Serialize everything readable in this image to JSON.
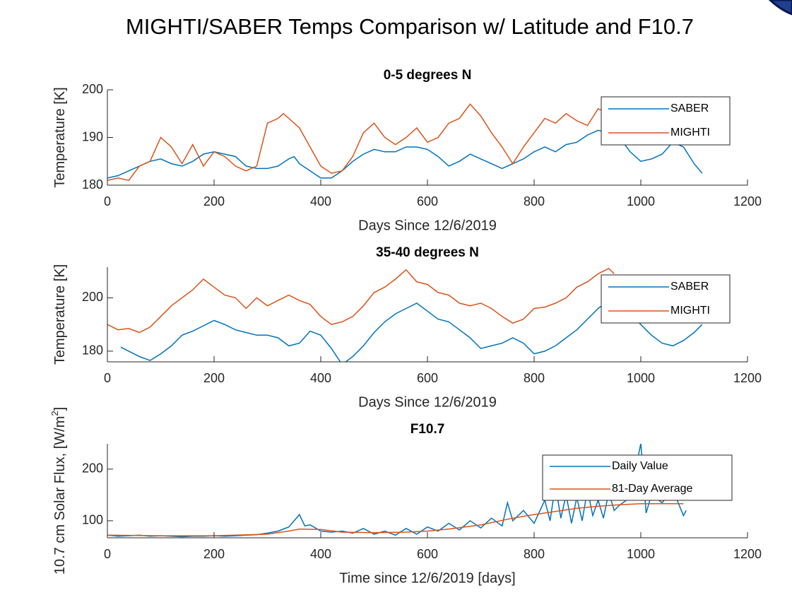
{
  "title": "MIGHTI/SABER Temps Comparison w/ Latitude and F10.7",
  "chart_data": [
    {
      "type": "line",
      "title": "0-5 degrees N",
      "xlabel": "Days Since 12/6/2019",
      "ylabel": [
        "Temperature [K]"
      ],
      "xlim": [
        0,
        1200
      ],
      "xticks": [
        0,
        200,
        400,
        600,
        800,
        1000,
        1200
      ],
      "ylim": [
        180,
        200
      ],
      "yticks": [
        180,
        190,
        200
      ],
      "legend": "northeast",
      "series": [
        {
          "name": "SABER",
          "color": "#0072bd",
          "x": [
            0,
            20,
            40,
            60,
            80,
            100,
            120,
            140,
            160,
            180,
            200,
            220,
            240,
            260,
            280,
            300,
            320,
            340,
            350,
            360,
            380,
            400,
            420,
            440,
            460,
            480,
            500,
            520,
            540,
            560,
            580,
            600,
            620,
            640,
            660,
            680,
            700,
            720,
            740,
            760,
            780,
            800,
            820,
            840,
            860,
            880,
            900,
            920,
            940,
            960,
            980,
            1000,
            1020,
            1040,
            1060,
            1080,
            1100,
            1115
          ],
          "values": [
            181.5,
            182,
            183,
            184,
            185,
            185.5,
            184.5,
            184,
            185,
            186.5,
            187,
            186.5,
            186,
            184,
            183.5,
            183.5,
            184,
            185.5,
            186,
            184.5,
            183,
            181.5,
            181.5,
            183,
            185,
            186.5,
            187.5,
            187,
            187,
            188,
            188,
            187.5,
            186,
            184,
            185,
            186.5,
            185.5,
            184.5,
            183.5,
            184.5,
            185.5,
            187,
            188,
            187,
            188.5,
            189,
            190.5,
            191.5,
            191,
            190,
            187,
            185,
            185.5,
            186.5,
            189,
            188,
            184.5,
            182.5
          ]
        },
        {
          "name": "MIGHTI",
          "color": "#d95319",
          "x": [
            0,
            20,
            40,
            60,
            80,
            100,
            120,
            140,
            160,
            180,
            200,
            220,
            240,
            260,
            280,
            300,
            320,
            330,
            340,
            360,
            380,
            400,
            420,
            440,
            460,
            480,
            500,
            520,
            540,
            560,
            580,
            600,
            620,
            640,
            660,
            680,
            700,
            720,
            740,
            760,
            780,
            800,
            820,
            840,
            860,
            880,
            900,
            920,
            940
          ],
          "values": [
            181,
            181.5,
            181,
            184,
            185,
            190,
            188,
            184.5,
            188.5,
            184,
            187,
            186,
            184,
            183,
            184,
            193,
            194,
            195,
            194,
            192,
            188,
            184,
            182.5,
            183,
            186,
            191,
            193,
            190,
            188.5,
            190,
            192,
            189,
            190,
            193,
            194,
            197,
            194.5,
            191,
            188,
            184.5,
            188,
            191,
            194,
            193,
            195,
            193.5,
            192.5,
            196,
            195
          ]
        }
      ]
    },
    {
      "type": "line",
      "title": "35-40 degrees N",
      "xlabel": "Days Since 12/6/2019",
      "ylabel": [
        "Temperature [K]"
      ],
      "xlim": [
        0,
        1200
      ],
      "xticks": [
        0,
        200,
        400,
        600,
        800,
        1000,
        1200
      ],
      "ylim": [
        176,
        211.5
      ],
      "yticks": [
        180,
        200
      ],
      "legend": "northeast",
      "series": [
        {
          "name": "SABER",
          "color": "#0072bd",
          "x": [
            25,
            40,
            60,
            80,
            100,
            120,
            140,
            160,
            180,
            200,
            220,
            240,
            260,
            280,
            300,
            320,
            340,
            360,
            380,
            400,
            420,
            440,
            460,
            480,
            500,
            520,
            540,
            560,
            580,
            600,
            620,
            640,
            660,
            680,
            700,
            720,
            740,
            760,
            780,
            800,
            820,
            840,
            860,
            880,
            900,
            920,
            940,
            960,
            980,
            1000,
            1020,
            1040,
            1060,
            1080,
            1100,
            1115
          ],
          "values": [
            181.5,
            180,
            178,
            176.5,
            179,
            182,
            186,
            187.5,
            189.5,
            191.5,
            190,
            188,
            187,
            186,
            186,
            185,
            182,
            183,
            187.5,
            186,
            181,
            175,
            178,
            182,
            187,
            191,
            194,
            196,
            198,
            195,
            192,
            191,
            188,
            185,
            181,
            182,
            183,
            185,
            183,
            179,
            180,
            182,
            185,
            188,
            192,
            196,
            199,
            199,
            194,
            190,
            186,
            183,
            182,
            184,
            187,
            190
          ]
        },
        {
          "name": "MIGHTI",
          "color": "#d95319",
          "x": [
            0,
            20,
            40,
            60,
            80,
            100,
            120,
            140,
            160,
            180,
            200,
            220,
            240,
            260,
            280,
            300,
            320,
            340,
            360,
            380,
            400,
            420,
            440,
            460,
            480,
            500,
            520,
            540,
            560,
            580,
            600,
            620,
            640,
            660,
            680,
            700,
            720,
            740,
            760,
            780,
            800,
            820,
            840,
            860,
            880,
            900,
            920,
            940,
            950
          ],
          "values": [
            190,
            188,
            188.5,
            187,
            189,
            193,
            197,
            200,
            203,
            207,
            204,
            201,
            200,
            196,
            200,
            197,
            199,
            201,
            199,
            197.5,
            193,
            190,
            191,
            193,
            197,
            202,
            204,
            207,
            210.5,
            206,
            205,
            202,
            201,
            198,
            197,
            198,
            196,
            193,
            190.5,
            192,
            196,
            196.5,
            198,
            200,
            204,
            206,
            209,
            211,
            209
          ]
        }
      ]
    },
    {
      "type": "line",
      "title": "F10.7",
      "xlabel": "Time since 12/6/2019 [days]",
      "ylabel": [
        "10.7 cm Solar Flux, [W/m",
        "2",
        "]"
      ],
      "xlim": [
        0,
        1200
      ],
      "xticks": [
        0,
        200,
        400,
        600,
        800,
        1000,
        1200
      ],
      "ylim": [
        67,
        249
      ],
      "yticks": [
        100,
        200
      ],
      "legend": "northeast",
      "series": [
        {
          "name": "Daily Value",
          "color": "#0072bd",
          "x": [
            0,
            20,
            40,
            60,
            80,
            100,
            120,
            140,
            160,
            180,
            200,
            220,
            240,
            260,
            280,
            300,
            320,
            340,
            360,
            370,
            380,
            400,
            420,
            440,
            460,
            480,
            500,
            520,
            540,
            560,
            580,
            600,
            620,
            640,
            660,
            680,
            700,
            720,
            740,
            750,
            760,
            780,
            800,
            820,
            830,
            840,
            850,
            860,
            870,
            880,
            890,
            900,
            910,
            920,
            930,
            940,
            950,
            960,
            980,
            1000,
            1010,
            1020,
            1040,
            1060,
            1080,
            1085
          ],
          "values": [
            72,
            70,
            71,
            72,
            70,
            71,
            70,
            69,
            70,
            70,
            71,
            70,
            71,
            72,
            73,
            76,
            80,
            88,
            112,
            90,
            92,
            80,
            78,
            80,
            76,
            85,
            74,
            80,
            72,
            85,
            74,
            88,
            80,
            95,
            82,
            100,
            86,
            105,
            90,
            135,
            100,
            120,
            95,
            140,
            100,
            170,
            105,
            150,
            95,
            145,
            100,
            160,
            110,
            140,
            105,
            155,
            120,
            130,
            145,
            250,
            115,
            150,
            135,
            160,
            110,
            120
          ]
        },
        {
          "name": "81-Day Average",
          "color": "#d95319",
          "x": [
            0,
            100,
            200,
            300,
            340,
            360,
            400,
            440,
            500,
            560,
            600,
            640,
            700,
            760,
            800,
            840,
            880,
            920,
            960,
            1000,
            1040,
            1080
          ],
          "values": [
            72,
            71,
            71,
            74,
            80,
            84,
            83,
            78,
            77,
            78,
            80,
            84,
            92,
            105,
            112,
            118,
            124,
            128,
            131,
            133,
            133,
            133
          ]
        }
      ]
    }
  ]
}
